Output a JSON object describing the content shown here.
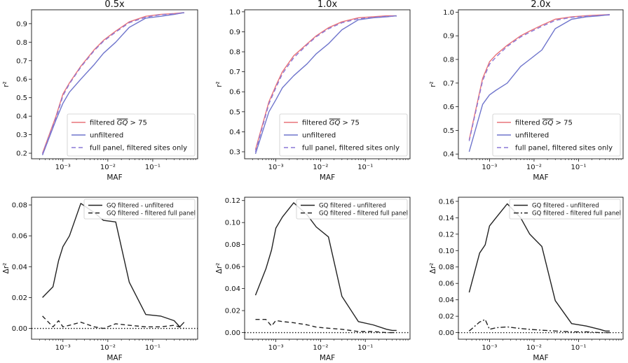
{
  "chart_data": [
    {
      "type": "line",
      "title": "0.5x",
      "xlabel": "MAF",
      "ylabel": "r²",
      "xscale": "log",
      "xlim": [
        0.0002,
        1.0
      ],
      "ylim": [
        0.17,
        0.975
      ],
      "yticks": [
        0.2,
        0.3,
        0.4,
        0.5,
        0.6,
        0.7,
        0.8,
        0.9
      ],
      "yticklabels": [
        "0.2",
        "0.3",
        "0.4",
        "0.5",
        "0.6",
        "0.7",
        "0.8",
        "0.9"
      ],
      "xticks": [
        0.001,
        0.01,
        0.1
      ],
      "xticklabels": [
        "10⁻³",
        "10⁻²",
        "10⁻¹"
      ],
      "legend_position": "lower-right",
      "series": [
        {
          "name": "filtered GQ > 75",
          "label_main": "filtered ",
          "label_gq": "GQ",
          "label_tail": " > 75",
          "color": "#e8737a",
          "dash": "solid",
          "x": [
            0.00035,
            0.0007,
            0.001,
            0.0014,
            0.0025,
            0.005,
            0.008,
            0.015,
            0.03,
            0.07,
            0.15,
            0.3,
            0.5
          ],
          "y": [
            0.2,
            0.4,
            0.52,
            0.58,
            0.67,
            0.76,
            0.81,
            0.86,
            0.91,
            0.94,
            0.95,
            0.955,
            0.96
          ]
        },
        {
          "name": "unfiltered",
          "color": "#6f75cc",
          "dash": "solid",
          "x": [
            0.00035,
            0.0007,
            0.001,
            0.0014,
            0.0025,
            0.005,
            0.008,
            0.015,
            0.03,
            0.07,
            0.15,
            0.3,
            0.5
          ],
          "y": [
            0.19,
            0.38,
            0.47,
            0.53,
            0.6,
            0.68,
            0.74,
            0.8,
            0.88,
            0.93,
            0.94,
            0.95,
            0.96
          ]
        },
        {
          "name": "full panel, filtered sites only",
          "color": "#8a78d6",
          "dash": "dashed",
          "x": [
            0.00035,
            0.0007,
            0.001,
            0.0014,
            0.0025,
            0.005,
            0.008,
            0.015,
            0.03,
            0.07,
            0.15,
            0.3,
            0.5
          ],
          "y": [
            0.195,
            0.39,
            0.51,
            0.575,
            0.665,
            0.755,
            0.805,
            0.855,
            0.905,
            0.935,
            0.948,
            0.953,
            0.958
          ]
        }
      ]
    },
    {
      "type": "line",
      "title": "1.0x",
      "xlabel": "MAF",
      "ylabel": "r²",
      "xscale": "log",
      "xlim": [
        0.0002,
        1.0
      ],
      "ylim": [
        0.265,
        1.01
      ],
      "yticks": [
        0.3,
        0.4,
        0.5,
        0.6,
        0.7,
        0.8,
        0.9,
        1.0
      ],
      "yticklabels": [
        "0.3",
        "0.4",
        "0.5",
        "0.6",
        "0.7",
        "0.8",
        "0.9",
        "1.0"
      ],
      "xticks": [
        0.001,
        0.01,
        0.1
      ],
      "xticklabels": [
        "10⁻³",
        "10⁻²",
        "10⁻¹"
      ],
      "legend_position": "lower-right",
      "series": [
        {
          "name": "filtered GQ > 75",
          "label_main": "filtered ",
          "label_gq": "GQ",
          "label_tail": " > 75",
          "color": "#e8737a",
          "dash": "solid",
          "x": [
            0.00035,
            0.0007,
            0.001,
            0.0014,
            0.0025,
            0.005,
            0.008,
            0.015,
            0.03,
            0.07,
            0.15,
            0.3,
            0.5
          ],
          "y": [
            0.31,
            0.55,
            0.63,
            0.7,
            0.78,
            0.84,
            0.88,
            0.92,
            0.95,
            0.97,
            0.975,
            0.98,
            0.98
          ]
        },
        {
          "name": "unfiltered",
          "color": "#6f75cc",
          "dash": "solid",
          "x": [
            0.00035,
            0.0007,
            0.001,
            0.0014,
            0.0025,
            0.005,
            0.008,
            0.015,
            0.03,
            0.07,
            0.15,
            0.3,
            0.5
          ],
          "y": [
            0.29,
            0.5,
            0.56,
            0.62,
            0.68,
            0.74,
            0.79,
            0.84,
            0.91,
            0.96,
            0.97,
            0.975,
            0.98
          ]
        },
        {
          "name": "full panel, filtered sites only",
          "color": "#8a78d6",
          "dash": "dashed",
          "x": [
            0.00035,
            0.0007,
            0.001,
            0.0014,
            0.0025,
            0.005,
            0.008,
            0.015,
            0.03,
            0.07,
            0.15,
            0.3,
            0.5
          ],
          "y": [
            0.3,
            0.54,
            0.62,
            0.69,
            0.77,
            0.835,
            0.875,
            0.915,
            0.945,
            0.965,
            0.972,
            0.977,
            0.978
          ]
        }
      ]
    },
    {
      "type": "line",
      "title": "2.0x",
      "xlabel": "MAF",
      "ylabel": "r²",
      "xscale": "log",
      "xlim": [
        0.0002,
        1.0
      ],
      "ylim": [
        0.38,
        1.01
      ],
      "yticks": [
        0.4,
        0.5,
        0.6,
        0.7,
        0.8,
        0.9,
        1.0
      ],
      "yticklabels": [
        "0.4",
        "0.5",
        "0.6",
        "0.7",
        "0.8",
        "0.9",
        "1.0"
      ],
      "xticks": [
        0.001,
        0.01,
        0.1
      ],
      "xticklabels": [
        "10⁻³",
        "10⁻²",
        "10⁻¹"
      ],
      "legend_position": "lower-right",
      "series": [
        {
          "name": "filtered GQ > 75",
          "label_main": "filtered ",
          "label_gq": "GQ",
          "label_tail": " > 75",
          "color": "#e8737a",
          "dash": "solid",
          "x": [
            0.00035,
            0.0007,
            0.001,
            0.0014,
            0.0025,
            0.005,
            0.008,
            0.015,
            0.03,
            0.07,
            0.15,
            0.3,
            0.5
          ],
          "y": [
            0.46,
            0.72,
            0.79,
            0.82,
            0.86,
            0.9,
            0.92,
            0.945,
            0.97,
            0.98,
            0.985,
            0.988,
            0.99
          ]
        },
        {
          "name": "unfiltered",
          "color": "#6f75cc",
          "dash": "solid",
          "x": [
            0.00035,
            0.0007,
            0.001,
            0.0014,
            0.0025,
            0.005,
            0.008,
            0.015,
            0.03,
            0.07,
            0.15,
            0.3,
            0.5
          ],
          "y": [
            0.41,
            0.61,
            0.65,
            0.67,
            0.7,
            0.77,
            0.8,
            0.84,
            0.93,
            0.97,
            0.98,
            0.985,
            0.99
          ]
        },
        {
          "name": "full panel, filtered sites only",
          "color": "#8a78d6",
          "dash": "dashed",
          "x": [
            0.00035,
            0.0007,
            0.001,
            0.0014,
            0.0025,
            0.005,
            0.008,
            0.015,
            0.03,
            0.07,
            0.15,
            0.3,
            0.5
          ],
          "y": [
            0.455,
            0.71,
            0.78,
            0.81,
            0.855,
            0.895,
            0.915,
            0.94,
            0.965,
            0.978,
            0.983,
            0.986,
            0.988
          ]
        }
      ]
    },
    {
      "type": "line",
      "title": "",
      "xlabel": "MAF",
      "ylabel": "Δr²",
      "xscale": "log",
      "xlim": [
        0.0002,
        1.0
      ],
      "ylim": [
        -0.007,
        0.085
      ],
      "yticks": [
        0.0,
        0.02,
        0.04,
        0.06,
        0.08
      ],
      "yticklabels": [
        "0.00",
        "0.02",
        "0.04",
        "0.06",
        "0.08"
      ],
      "xticks": [
        0.001,
        0.01,
        0.1
      ],
      "xticklabels": [
        "10⁻³",
        "10⁻²",
        "10⁻¹"
      ],
      "legend_position": "top-right",
      "zero_line": true,
      "series": [
        {
          "name": "GQ filtered - unfiltered",
          "color": "#222222",
          "dash": "solid",
          "x": [
            0.00035,
            0.0006,
            0.0008,
            0.001,
            0.0014,
            0.0025,
            0.005,
            0.008,
            0.015,
            0.03,
            0.07,
            0.15,
            0.3,
            0.4,
            0.5
          ],
          "y": [
            0.02,
            0.027,
            0.044,
            0.053,
            0.06,
            0.081,
            0.075,
            0.07,
            0.069,
            0.03,
            0.009,
            0.008,
            0.005,
            0.001,
            0.004
          ]
        },
        {
          "name": "GQ filtered - filtered full panel",
          "color": "#222222",
          "dash": "dashed",
          "x": [
            0.00035,
            0.0006,
            0.0008,
            0.001,
            0.0014,
            0.0025,
            0.005,
            0.008,
            0.015,
            0.03,
            0.07,
            0.15,
            0.3,
            0.5
          ],
          "y": [
            0.008,
            0.001,
            0.005,
            0.001,
            0.002,
            0.004,
            0.001,
            0.0,
            0.003,
            0.002,
            0.001,
            0.001,
            0.002,
            0.0
          ]
        }
      ]
    },
    {
      "type": "line",
      "title": "",
      "xlabel": "MAF",
      "ylabel": "Δr²",
      "xscale": "log",
      "xlim": [
        0.0002,
        1.0
      ],
      "ylim": [
        -0.006,
        0.123
      ],
      "yticks": [
        0.0,
        0.02,
        0.04,
        0.06,
        0.08,
        0.1,
        0.12
      ],
      "yticklabels": [
        "0.00",
        "0.02",
        "0.04",
        "0.06",
        "0.08",
        "0.10",
        "0.12"
      ],
      "xticks": [
        0.001,
        0.01,
        0.1
      ],
      "xticklabels": [
        "10⁻³",
        "10⁻²",
        "10⁻¹"
      ],
      "legend_position": "top-right",
      "zero_line": true,
      "series": [
        {
          "name": "GQ filtered - unfiltered",
          "color": "#222222",
          "dash": "solid",
          "x": [
            0.00035,
            0.0006,
            0.0008,
            0.001,
            0.0014,
            0.0025,
            0.005,
            0.008,
            0.015,
            0.03,
            0.07,
            0.15,
            0.3,
            0.4,
            0.5
          ],
          "y": [
            0.034,
            0.058,
            0.075,
            0.095,
            0.105,
            0.118,
            0.107,
            0.096,
            0.087,
            0.033,
            0.01,
            0.007,
            0.003,
            0.002,
            0.002
          ]
        },
        {
          "name": "GQ filtered - filtered full panel",
          "color": "#222222",
          "dash": "dashed",
          "x": [
            0.00035,
            0.0006,
            0.0008,
            0.001,
            0.0014,
            0.0025,
            0.005,
            0.008,
            0.015,
            0.03,
            0.07,
            0.15,
            0.3,
            0.5
          ],
          "y": [
            0.012,
            0.012,
            0.006,
            0.011,
            0.01,
            0.009,
            0.007,
            0.005,
            0.004,
            0.003,
            0.001,
            0.001,
            0.0,
            0.0
          ]
        }
      ]
    },
    {
      "type": "line",
      "title": "",
      "xlabel": "MAF",
      "ylabel": "Δr²",
      "xscale": "log",
      "xlim": [
        0.0002,
        1.0
      ],
      "ylim": [
        -0.008,
        0.165
      ],
      "yticks": [
        0.0,
        0.02,
        0.04,
        0.06,
        0.08,
        0.1,
        0.12,
        0.14,
        0.16
      ],
      "yticklabels": [
        "0.00",
        "0.02",
        "0.04",
        "0.06",
        "0.08",
        "0.10",
        "0.12",
        "0.14",
        "0.16"
      ],
      "xticks": [
        0.001,
        0.01,
        0.1
      ],
      "xticklabels": [
        "10⁻³",
        "10⁻²",
        "10⁻¹"
      ],
      "legend_position": "top-right",
      "zero_line": true,
      "series": [
        {
          "name": "GQ filtered - unfiltered",
          "color": "#222222",
          "dash": "solid",
          "x": [
            0.00035,
            0.0006,
            0.0008,
            0.001,
            0.0014,
            0.0025,
            0.005,
            0.008,
            0.015,
            0.03,
            0.07,
            0.15,
            0.3,
            0.4,
            0.5
          ],
          "y": [
            0.049,
            0.097,
            0.107,
            0.13,
            0.14,
            0.157,
            0.14,
            0.12,
            0.105,
            0.039,
            0.011,
            0.008,
            0.004,
            0.002,
            0.002
          ]
        },
        {
          "name": "GQ filtered - filtered full panel",
          "color": "#222222",
          "dash": "dashdot",
          "x": [
            0.00035,
            0.0006,
            0.0008,
            0.001,
            0.0014,
            0.0025,
            0.005,
            0.008,
            0.015,
            0.03,
            0.07,
            0.15,
            0.3,
            0.5
          ],
          "y": [
            0.002,
            0.013,
            0.016,
            0.004,
            0.006,
            0.007,
            0.005,
            0.004,
            0.003,
            0.002,
            0.001,
            0.001,
            0.0,
            0.0
          ]
        }
      ]
    }
  ]
}
